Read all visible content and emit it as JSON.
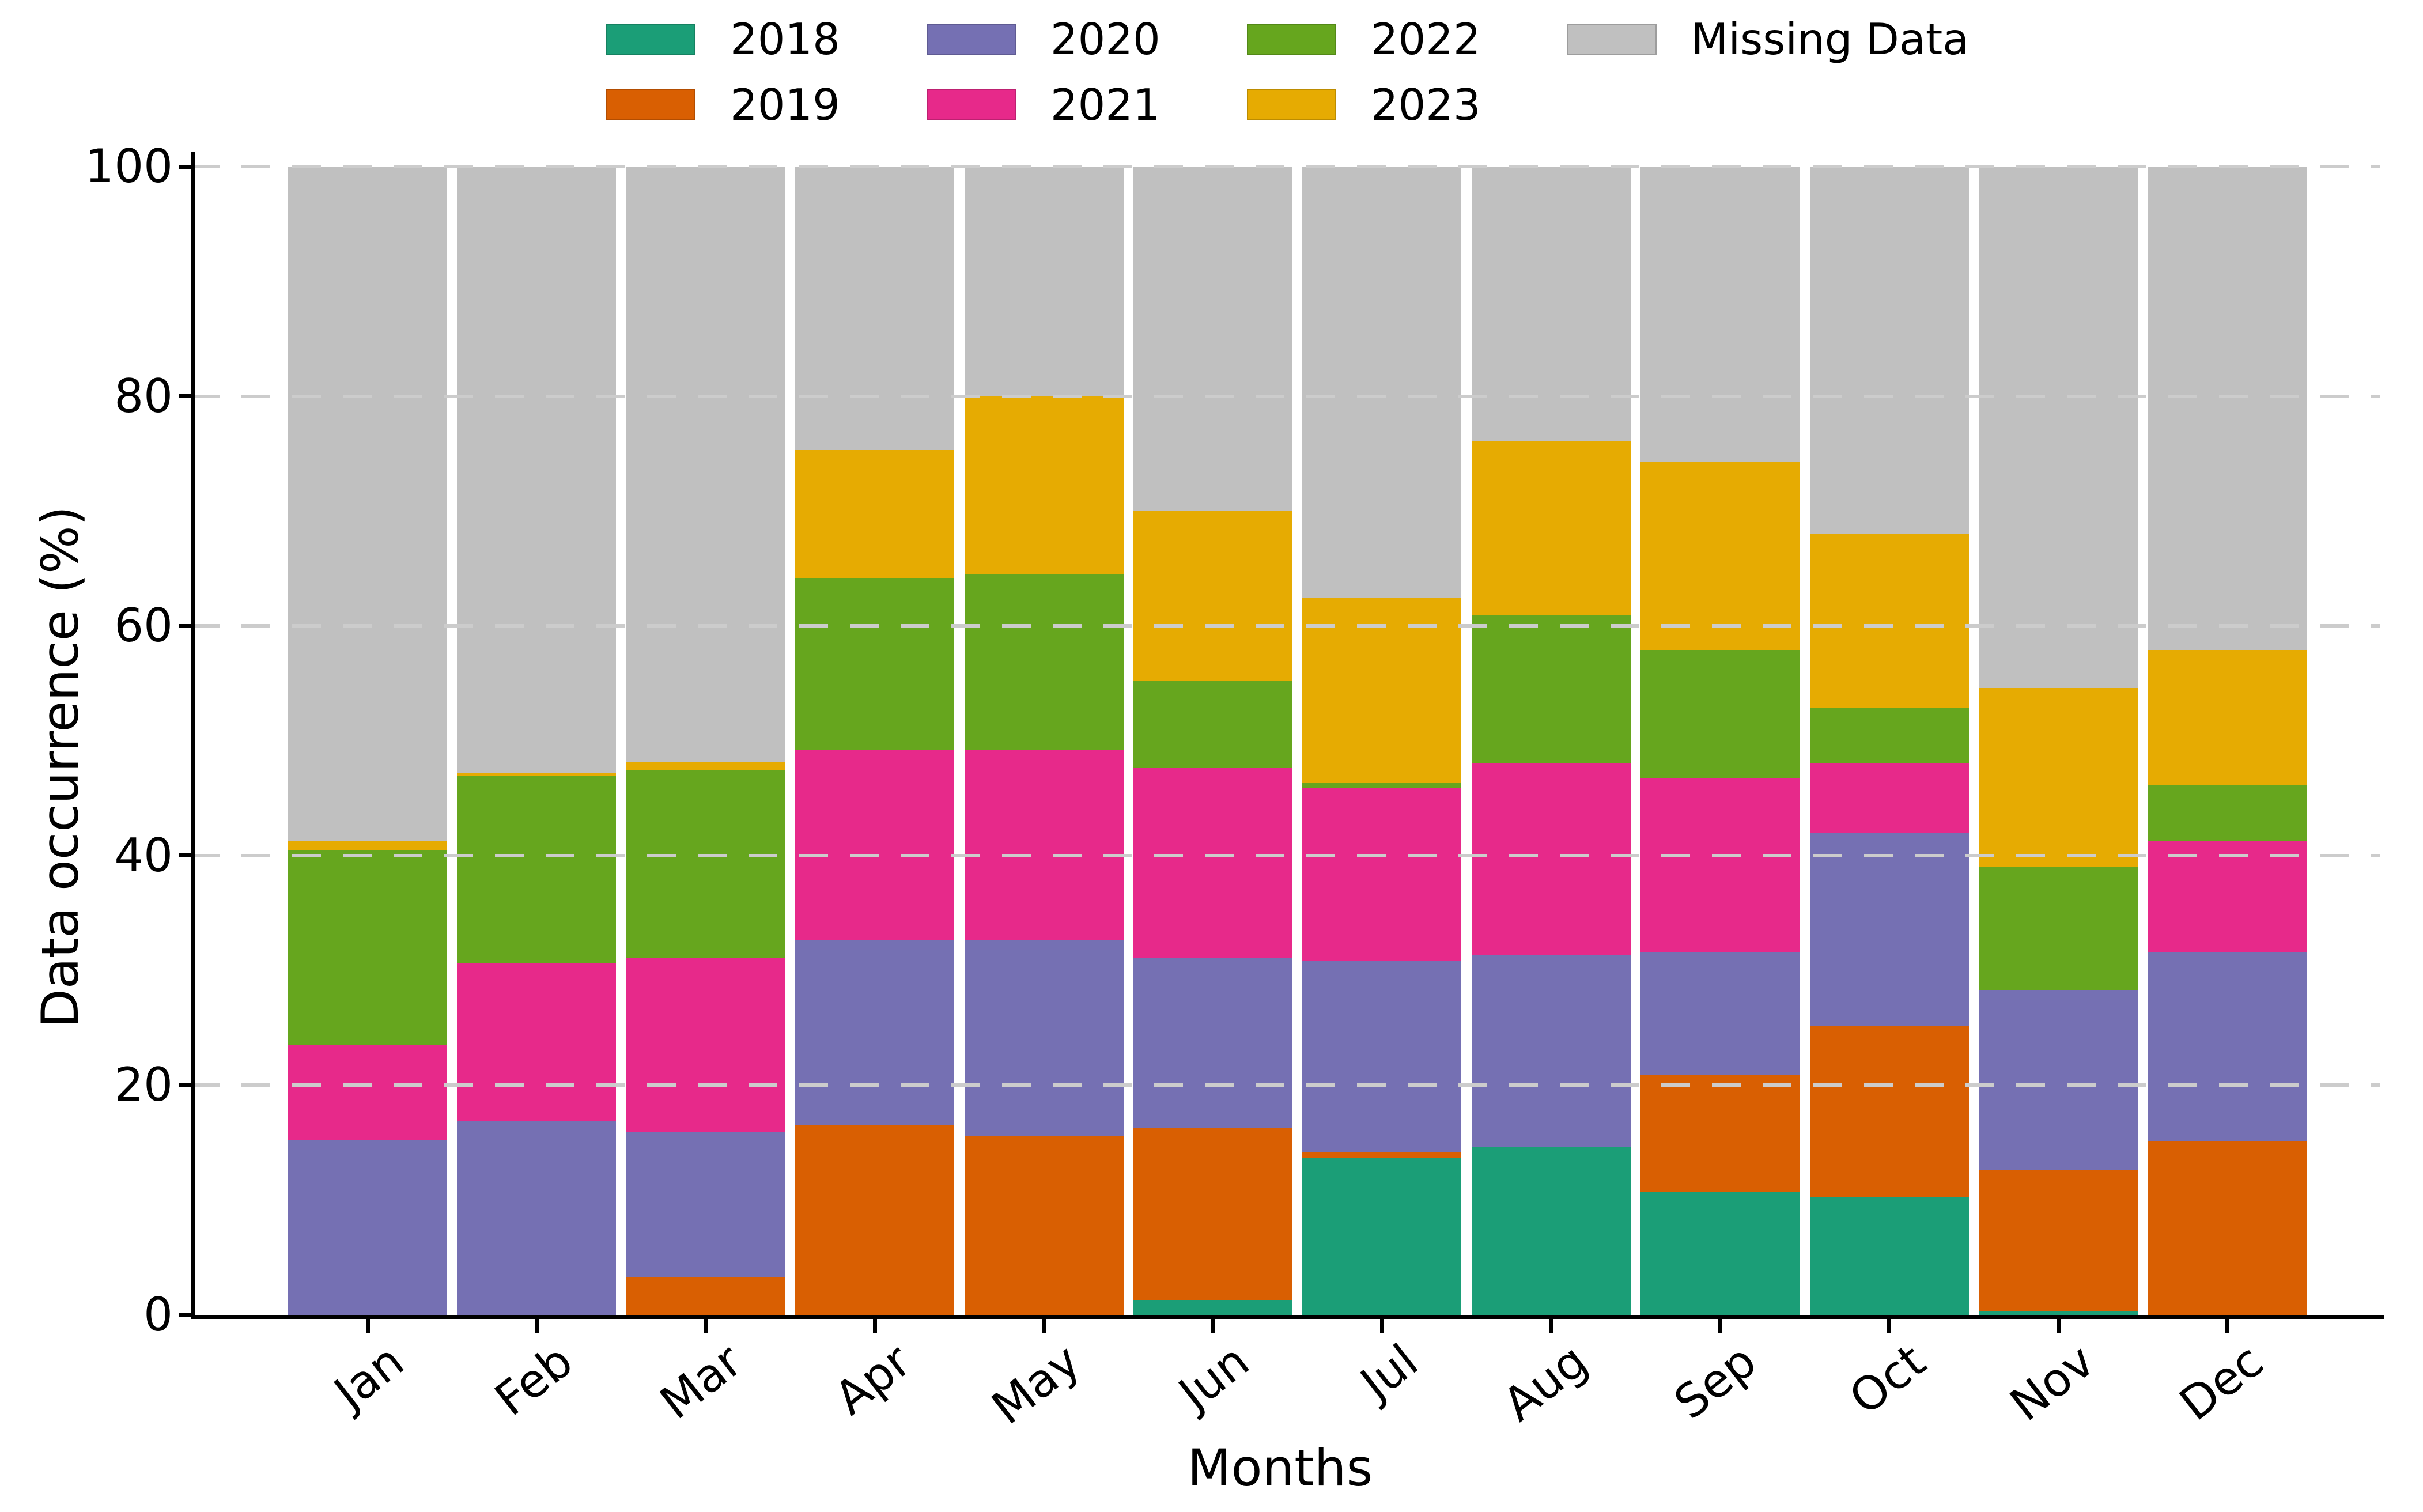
{
  "chart_data": {
    "type": "bar",
    "stacked": true,
    "orientation": "vertical",
    "title": "",
    "xlabel": "Months",
    "ylabel": "Data occurrence (%)",
    "ylim": [
      0,
      100
    ],
    "yticks": [
      0,
      20,
      40,
      60,
      80,
      100
    ],
    "grid": {
      "axis": "y",
      "style": "dashed",
      "color": "#cccccc",
      "drawn_above_bars": true
    },
    "legend": {
      "position": "top",
      "rows": 2,
      "order": "column-major: 2018/2019, 2020/2021, 2022/2023, Missing Data"
    },
    "categories": [
      "Jan",
      "Feb",
      "Mar",
      "Apr",
      "May",
      "Jun",
      "Jul",
      "Aug",
      "Sep",
      "Oct",
      "Nov",
      "Dec"
    ],
    "series": [
      {
        "name": "2018",
        "color": "#1b9e77",
        "values": [
          0,
          0,
          0,
          0,
          0,
          1.3,
          13.7,
          14.6,
          10.7,
          10.3,
          0.3,
          0
        ]
      },
      {
        "name": "2019",
        "color": "#d95f02",
        "values": [
          0,
          0,
          3.3,
          16.5,
          15.6,
          15.0,
          0.5,
          0,
          10.2,
          14.9,
          12.3,
          15.1
        ]
      },
      {
        "name": "2020",
        "color": "#7570b3",
        "values": [
          15.2,
          16.9,
          12.6,
          16.1,
          17.0,
          14.8,
          16.6,
          16.7,
          10.7,
          16.8,
          15.7,
          16.5
        ]
      },
      {
        "name": "2021",
        "color": "#e7298a",
        "values": [
          8.3,
          13.7,
          15.2,
          16.6,
          16.6,
          16.5,
          15.1,
          16.7,
          15.1,
          6.0,
          0,
          9.7
        ]
      },
      {
        "name": "2022",
        "color": "#66a61e",
        "values": [
          17.0,
          16.3,
          16.3,
          15.0,
          15.3,
          7.6,
          0.4,
          12.9,
          11.2,
          4.9,
          10.7,
          4.8
        ]
      },
      {
        "name": "2023",
        "color": "#e6ab02",
        "values": [
          0.8,
          0.3,
          0.7,
          11.1,
          15.5,
          14.8,
          16.1,
          15.2,
          16.4,
          15.1,
          15.6,
          11.8
        ]
      },
      {
        "name": "Missing Data",
        "color": "#c0c0c0",
        "values": [
          58.7,
          52.8,
          51.9,
          24.7,
          20.0,
          30.0,
          37.6,
          23.9,
          25.7,
          32.0,
          45.4,
          42.1
        ]
      }
    ]
  },
  "colors": {
    "spine": "#000000",
    "background": "#ffffff",
    "tick_label": "#000000"
  }
}
